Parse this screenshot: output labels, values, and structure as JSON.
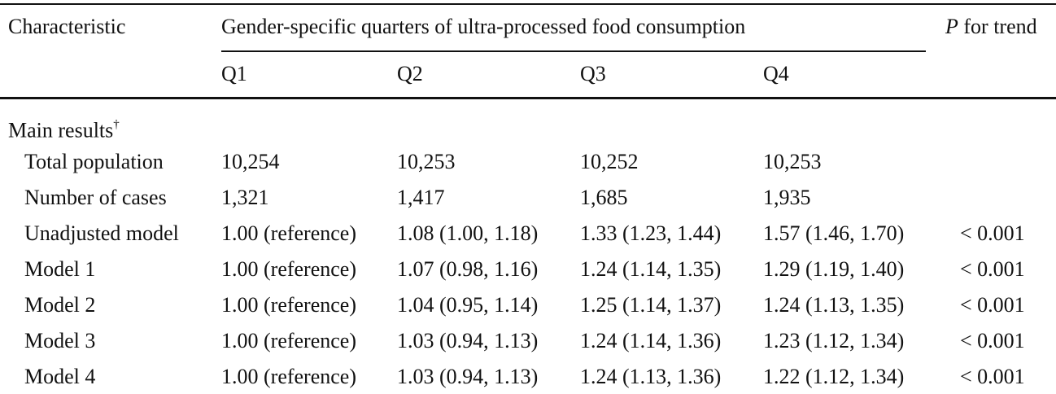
{
  "header": {
    "characteristic": "Characteristic",
    "group_label": "Gender-specific quarters of ultra-processed food consumption",
    "trend_italic": "P",
    "trend_rest": " for trend",
    "quartiles": [
      "Q1",
      "Q2",
      "Q3",
      "Q4"
    ]
  },
  "section": {
    "label": "Main results",
    "mark": "†"
  },
  "rows": [
    {
      "label": "Total population",
      "q1": "10,254",
      "q2": "10,253",
      "q3": "10,252",
      "q4": "10,253",
      "trend": ""
    },
    {
      "label": "Number of cases",
      "q1": "1,321",
      "q2": "1,417",
      "q3": "1,685",
      "q4": "1,935",
      "trend": ""
    },
    {
      "label": "Unadjusted model",
      "q1": "1.00 (reference)",
      "q2": "1.08 (1.00, 1.18)",
      "q3": "1.33 (1.23, 1.44)",
      "q4": "1.57 (1.46, 1.70)",
      "trend": "< 0.001"
    },
    {
      "label": "Model 1",
      "q1": "1.00 (reference)",
      "q2": "1.07 (0.98, 1.16)",
      "q3": "1.24 (1.14, 1.35)",
      "q4": "1.29 (1.19, 1.40)",
      "trend": "< 0.001"
    },
    {
      "label": "Model 2",
      "q1": "1.00 (reference)",
      "q2": "1.04 (0.95, 1.14)",
      "q3": "1.25 (1.14, 1.37)",
      "q4": "1.24 (1.13, 1.35)",
      "trend": "< 0.001"
    },
    {
      "label": "Model 3",
      "q1": "1.00 (reference)",
      "q2": "1.03 (0.94, 1.13)",
      "q3": "1.24 (1.14, 1.36)",
      "q4": "1.23 (1.12, 1.34)",
      "trend": "< 0.001"
    },
    {
      "label": "Model 4",
      "q1": "1.00 (reference)",
      "q2": "1.03 (0.94, 1.13)",
      "q3": "1.24 (1.13, 1.36)",
      "q4": "1.22 (1.12, 1.34)",
      "trend": "< 0.001"
    }
  ]
}
